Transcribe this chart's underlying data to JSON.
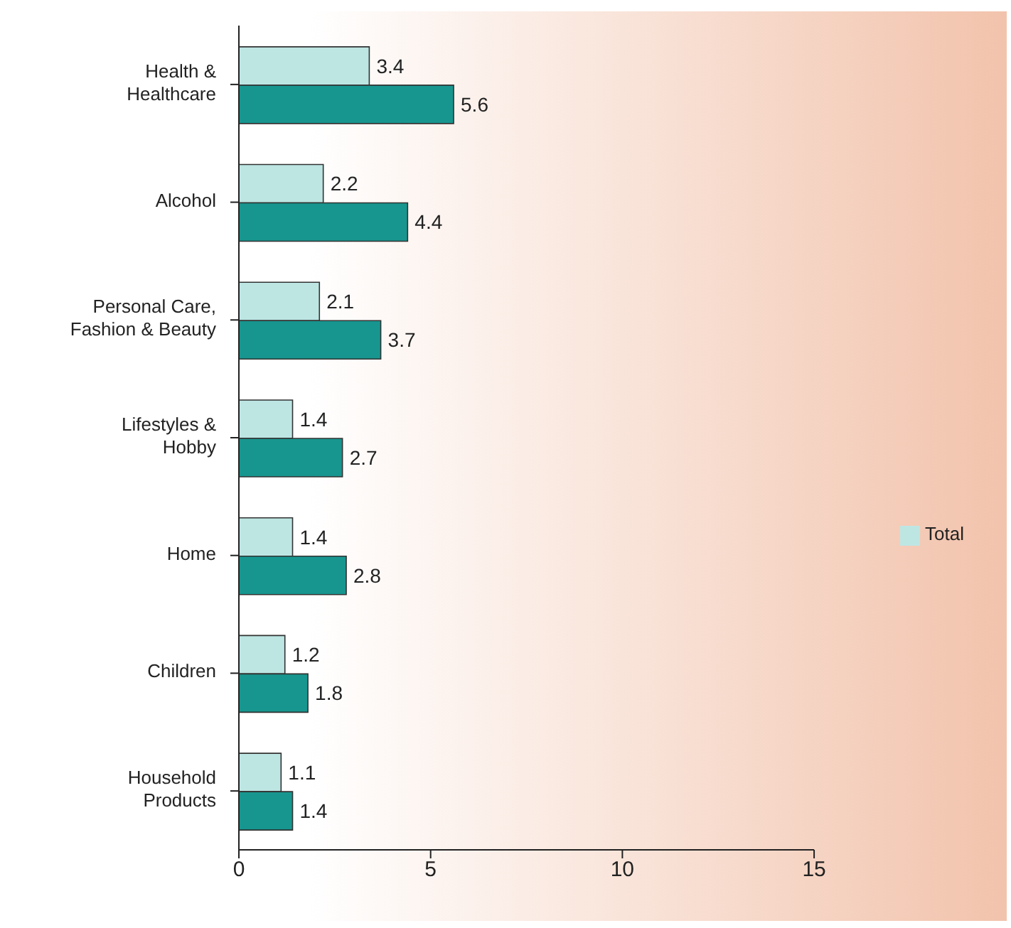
{
  "chart_data": {
    "type": "bar",
    "orientation": "horizontal",
    "categories": [
      "Health & Healthcare",
      "Alcohol",
      "Personal Care, Fashion & Beauty",
      "Lifestyles & Hobby",
      "Home",
      "Children",
      "Household Products"
    ],
    "series": [
      {
        "name": "Total",
        "color": "#bde6e3",
        "values": [
          3.4,
          2.2,
          2.1,
          1.4,
          1.4,
          1.2,
          1.1
        ]
      },
      {
        "color": "#17968f",
        "values": [
          5.6,
          4.4,
          3.7,
          2.7,
          2.8,
          1.8,
          1.4
        ]
      }
    ],
    "xlim": [
      0,
      15
    ],
    "xticks": [
      0,
      5,
      10,
      15
    ],
    "grid": false,
    "legend": "right",
    "data_labels": true
  }
}
